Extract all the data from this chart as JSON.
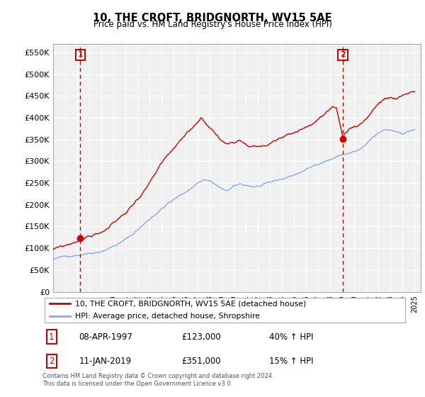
{
  "title": "10, THE CROFT, BRIDGNORTH, WV15 5AE",
  "subtitle": "Price paid vs. HM Land Registry's House Price Index (HPI)",
  "sale1_price": 123000,
  "sale1_label": "08-APR-1997",
  "sale1_hpi": "40% ↑ HPI",
  "sale2_price": 351000,
  "sale2_label": "11-JAN-2019",
  "sale2_hpi": "15% ↑ HPI",
  "sale1_year": 1997.25,
  "sale2_year": 2019.04,
  "legend_red": "10, THE CROFT, BRIDGNORTH, WV15 5AE (detached house)",
  "legend_blue": "HPI: Average price, detached house, Shropshire",
  "footer": "Contains HM Land Registry data © Crown copyright and database right 2024.\nThis data is licensed under the Open Government Licence v3.0.",
  "red_color": "#cc0000",
  "blue_color": "#88aadd",
  "vline_color": "#cc0000",
  "ylim": [
    0,
    570000
  ],
  "yticks": [
    0,
    50000,
    100000,
    150000,
    200000,
    250000,
    300000,
    350000,
    400000,
    450000,
    500000,
    550000
  ],
  "bg_color": "#f0f0f0",
  "grid_color": "#ffffff"
}
